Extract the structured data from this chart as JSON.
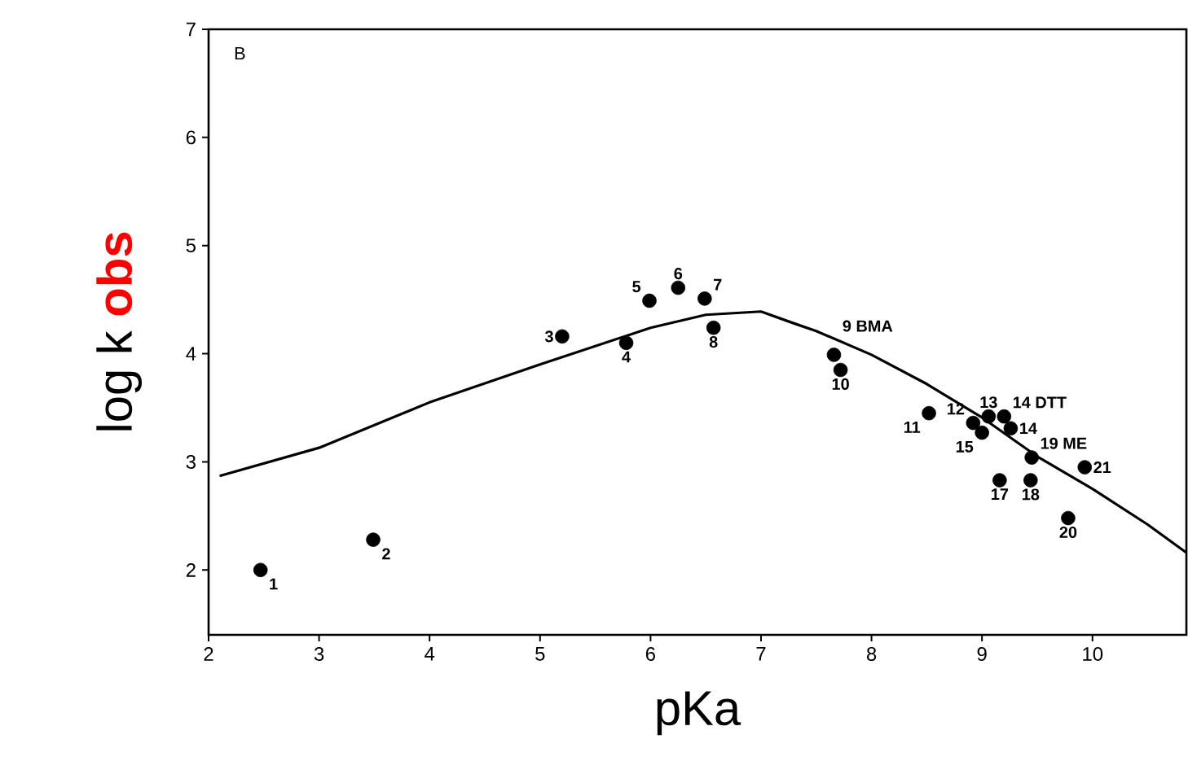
{
  "chart_data": {
    "type": "scatter",
    "xlabel": "pKa",
    "ylabel": "log k **obs**",
    "xlim": [
      2,
      10.85
    ],
    "ylim": [
      1.4,
      7
    ],
    "xticks": [
      2,
      3,
      4,
      5,
      6,
      7,
      8,
      9,
      10
    ],
    "yticks": [
      2,
      3,
      4,
      5,
      6,
      7
    ],
    "grid": false,
    "series": [
      {
        "color": "#000000",
        "marker": "circle",
        "x": [
          2.47,
          3.49,
          5.2,
          5.78,
          5.99,
          6.25,
          6.49,
          6.57,
          7.66,
          7.72,
          8.52,
          8.92,
          9.06,
          9.2,
          9.26,
          9.0,
          9.16,
          9.44,
          9.45,
          9.78,
          9.93
        ],
        "values": [
          2.0,
          2.28,
          4.16,
          4.1,
          4.49,
          4.61,
          4.51,
          4.24,
          3.99,
          3.85,
          3.45,
          3.36,
          3.42,
          3.42,
          3.31,
          3.27,
          2.83,
          2.83,
          3.04,
          2.48,
          2.95
        ]
      },
      {
        "type": "line",
        "color": "#000000",
        "marker": "none",
        "x": [
          2.1,
          3,
          4,
          5,
          6,
          6.5,
          7,
          7.3,
          7.5,
          8,
          8.5,
          9,
          9.5,
          10,
          10.5,
          10.85
        ],
        "values": [
          2.87,
          3.13,
          3.55,
          3.9,
          4.24,
          4.36,
          4.39,
          4.28,
          4.21,
          3.99,
          3.72,
          3.41,
          3.05,
          2.75,
          2.42,
          2.16
        ]
      }
    ],
    "annotations": [
      "B",
      {
        "text": "1",
        "x": 2.47,
        "y": 2.0
      },
      {
        "text": "2",
        "x": 3.49,
        "y": 2.28
      },
      {
        "text": "3",
        "x": 5.2,
        "y": 4.16
      },
      {
        "text": "4",
        "x": 5.78,
        "y": 4.1
      },
      {
        "text": "5",
        "x": 5.99,
        "y": 4.49
      },
      {
        "text": "6",
        "x": 6.25,
        "y": 4.61
      },
      {
        "text": "7",
        "x": 6.49,
        "y": 4.51
      },
      {
        "text": "8",
        "x": 6.57,
        "y": 4.24
      },
      {
        "text": "9 BMA",
        "x": 7.66,
        "y": 3.99
      },
      {
        "text": "10",
        "x": 7.72,
        "y": 3.85
      },
      {
        "text": "11",
        "x": 8.52,
        "y": 3.45
      },
      {
        "text": "12",
        "x": 8.92,
        "y": 3.36
      },
      {
        "text": "13",
        "x": 9.06,
        "y": 3.42
      },
      {
        "text": "14 DTT",
        "x": 9.2,
        "y": 3.42
      },
      {
        "text": "14",
        "x": 9.26,
        "y": 3.31
      },
      {
        "text": "15",
        "x": 9.0,
        "y": 3.27
      },
      {
        "text": "17",
        "x": 9.16,
        "y": 2.83
      },
      {
        "text": "18",
        "x": 9.44,
        "y": 2.83
      },
      {
        "text": "19 ME",
        "x": 9.45,
        "y": 3.04
      },
      {
        "text": "20",
        "x": 9.78,
        "y": 2.48
      },
      {
        "text": "21",
        "x": 9.93,
        "y": 2.95
      }
    ]
  }
}
